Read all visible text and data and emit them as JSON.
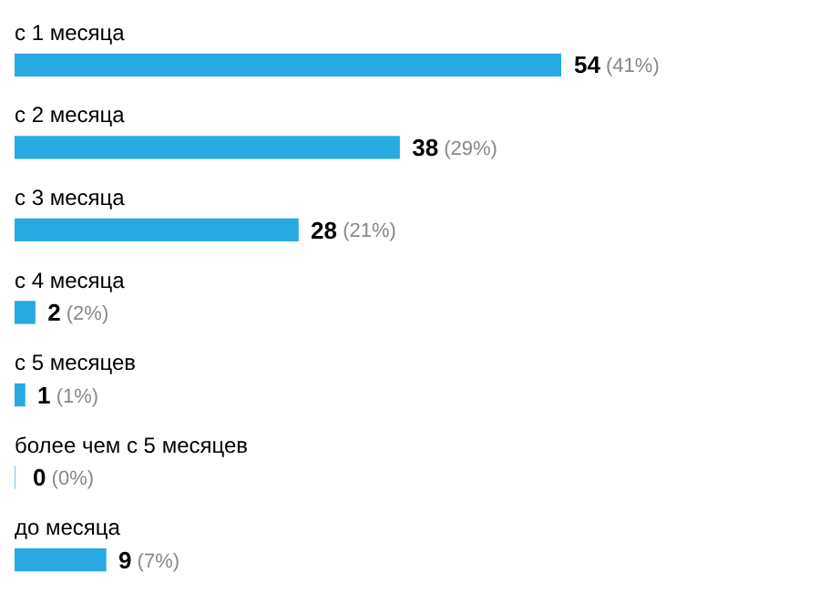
{
  "chart_data": {
    "type": "bar",
    "orientation": "horizontal",
    "categories": [
      "с 1 месяца",
      "с 2 месяца",
      "с 3 месяца",
      "с 4 месяца",
      "с 5 месяцев",
      "более чем с 5 месяцев",
      "до месяца"
    ],
    "values": [
      54,
      38,
      28,
      2,
      1,
      0,
      9
    ],
    "color": "#29a9e1",
    "value_labels": [
      "54 (41%)",
      "38 (29%)",
      "28 (21%)",
      "2 (2%)",
      "1 (1%)",
      "0 (0%)",
      "9 (7%)"
    ]
  }
}
